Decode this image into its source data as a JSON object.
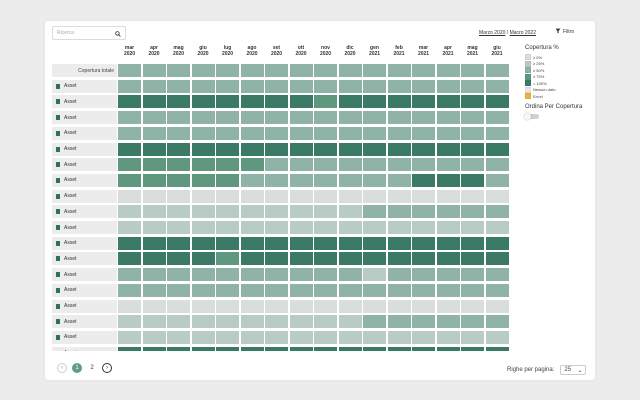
{
  "search": {
    "placeholder": "Ricerca",
    "icon": "search-icon"
  },
  "range": {
    "from": "Marzo 2020",
    "sep": "/",
    "to": "Marzo 2022"
  },
  "filter": {
    "label": "Filtro",
    "icon": "filter-icon"
  },
  "months": [
    {
      "m": "mar",
      "y": "2020"
    },
    {
      "m": "apr",
      "y": "2020"
    },
    {
      "m": "mag",
      "y": "2020"
    },
    {
      "m": "giu",
      "y": "2020"
    },
    {
      "m": "lug",
      "y": "2020"
    },
    {
      "m": "ago",
      "y": "2020"
    },
    {
      "m": "set",
      "y": "2020"
    },
    {
      "m": "ott",
      "y": "2020"
    },
    {
      "m": "nov",
      "y": "2020"
    },
    {
      "m": "dic",
      "y": "2020"
    },
    {
      "m": "gen",
      "y": "2021"
    },
    {
      "m": "feb",
      "y": "2021"
    },
    {
      "m": "mar",
      "y": "2021"
    },
    {
      "m": "apr",
      "y": "2021"
    },
    {
      "m": "mag",
      "y": "2021"
    },
    {
      "m": "giu",
      "y": "2021"
    }
  ],
  "colors": {
    "l1": "#d9dedc",
    "l2": "#b8cbc5",
    "l3": "#8fb4a7",
    "l4": "#5f977f",
    "l5": "#3b7a67",
    "nodata": "#e6e6e6",
    "error": "#f2b237"
  },
  "total_label": "Copertura totale",
  "rows": [
    {
      "label": "Asset",
      "levels": [
        3,
        3,
        3,
        3,
        3,
        3,
        3,
        3,
        3,
        3,
        3,
        3,
        3,
        3,
        3,
        3
      ]
    },
    {
      "label": "Asset",
      "levels": [
        5,
        5,
        5,
        5,
        5,
        5,
        5,
        5,
        4,
        5,
        5,
        5,
        5,
        5,
        5,
        5
      ]
    },
    {
      "label": "Asset",
      "levels": [
        3,
        3,
        3,
        3,
        3,
        3,
        3,
        3,
        3,
        3,
        3,
        3,
        3,
        3,
        3,
        3
      ]
    },
    {
      "label": "Asset",
      "levels": [
        3,
        3,
        3,
        3,
        3,
        3,
        3,
        3,
        3,
        3,
        3,
        3,
        3,
        3,
        3,
        3
      ]
    },
    {
      "label": "Asset",
      "levels": [
        5,
        5,
        5,
        5,
        5,
        5,
        5,
        5,
        5,
        5,
        5,
        5,
        5,
        5,
        5,
        5
      ]
    },
    {
      "label": "Asset",
      "levels": [
        4,
        4,
        4,
        4,
        4,
        4,
        3,
        3,
        3,
        3,
        3,
        3,
        3,
        3,
        3,
        3
      ]
    },
    {
      "label": "Asset",
      "levels": [
        4,
        4,
        4,
        4,
        4,
        3,
        3,
        3,
        3,
        3,
        3,
        3,
        5,
        5,
        5,
        3
      ]
    },
    {
      "label": "Asset",
      "levels": [
        1,
        1,
        1,
        1,
        1,
        1,
        1,
        1,
        1,
        1,
        1,
        1,
        1,
        1,
        1,
        1
      ]
    },
    {
      "label": "Asset",
      "levels": [
        2,
        2,
        2,
        2,
        2,
        2,
        2,
        2,
        2,
        2,
        3,
        3,
        3,
        3,
        3,
        3
      ]
    },
    {
      "label": "Asset",
      "levels": [
        2,
        2,
        2,
        2,
        2,
        2,
        2,
        2,
        2,
        2,
        2,
        2,
        2,
        2,
        2,
        2
      ]
    },
    {
      "label": "Asset",
      "levels": [
        5,
        5,
        5,
        5,
        5,
        5,
        5,
        5,
        5,
        5,
        5,
        5,
        5,
        5,
        5,
        5
      ]
    },
    {
      "label": "Asset",
      "levels": [
        5,
        5,
        5,
        5,
        4,
        5,
        5,
        5,
        5,
        5,
        5,
        5,
        5,
        5,
        5,
        5
      ]
    },
    {
      "label": "Asset",
      "levels": [
        3,
        3,
        3,
        3,
        3,
        3,
        3,
        3,
        3,
        3,
        2,
        3,
        3,
        3,
        3,
        3
      ]
    },
    {
      "label": "Asset",
      "levels": [
        3,
        3,
        3,
        3,
        3,
        3,
        3,
        3,
        3,
        3,
        3,
        3,
        3,
        3,
        3,
        3
      ]
    },
    {
      "label": "Asset",
      "levels": [
        1,
        1,
        1,
        1,
        1,
        1,
        1,
        1,
        1,
        1,
        1,
        1,
        1,
        1,
        1,
        1
      ]
    },
    {
      "label": "Asset",
      "levels": [
        2,
        2,
        2,
        2,
        2,
        2,
        2,
        2,
        2,
        2,
        3,
        3,
        3,
        3,
        3,
        3
      ]
    },
    {
      "label": "Asset",
      "levels": [
        2,
        2,
        2,
        2,
        2,
        2,
        2,
        2,
        2,
        2,
        2,
        2,
        2,
        2,
        2,
        2
      ]
    },
    {
      "label": "Asset",
      "levels": [
        5,
        5,
        5,
        5,
        5,
        5,
        5,
        5,
        5,
        5,
        5,
        5,
        5,
        5,
        5,
        5
      ]
    }
  ],
  "legend": {
    "title": "Copertura %",
    "items": [
      {
        "label": "≥ 0%",
        "color": "#d9dedc"
      },
      {
        "label": "≥ 25%",
        "color": "#b8cbc5"
      },
      {
        "label": "≥ 50%",
        "color": "#8fb4a7"
      },
      {
        "label": "≥ 75%",
        "color": "#5f977f"
      },
      {
        "label": "= 100%",
        "color": "#3b7a67"
      },
      {
        "label": "Nessun dato",
        "color": "#e6e6e6"
      },
      {
        "label": "Errori",
        "color": "#f2b237"
      }
    ],
    "sort_label": "Ordina Per Copertura",
    "sort_on": false
  },
  "pagination": {
    "pages": [
      "1",
      "2"
    ],
    "current": "1",
    "rows_per_page_label": "Righe per pagina:",
    "rows_per_page_value": "25"
  }
}
